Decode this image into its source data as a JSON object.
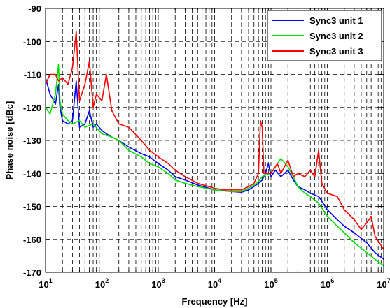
{
  "chart_data": {
    "type": "line",
    "title": "",
    "xlabel": "Frequency [Hz]",
    "ylabel": "Phase noise [dBc]",
    "x_scale": "log",
    "xlim": [
      10,
      10000000
    ],
    "ylim": [
      -170,
      -90
    ],
    "grid": true,
    "legend_position": "top-right",
    "x_ticks": [
      {
        "base": "10",
        "exp": "1"
      },
      {
        "base": "10",
        "exp": "2"
      },
      {
        "base": "10",
        "exp": "3"
      },
      {
        "base": "10",
        "exp": "4"
      },
      {
        "base": "10",
        "exp": "5"
      },
      {
        "base": "10",
        "exp": "6"
      },
      {
        "base": "10",
        "exp": "7"
      }
    ],
    "y_ticks": [
      "-90",
      "-100",
      "-110",
      "-120",
      "-130",
      "-140",
      "-150",
      "-160",
      "-170"
    ],
    "series": [
      {
        "name": "Sync3 unit 1",
        "color": "#0000ff",
        "points": [
          [
            10,
            -111
          ],
          [
            12,
            -116
          ],
          [
            15,
            -119
          ],
          [
            17,
            -113
          ],
          [
            18,
            -120
          ],
          [
            20,
            -124
          ],
          [
            25,
            -125
          ],
          [
            30,
            -124
          ],
          [
            35,
            -112
          ],
          [
            40,
            -126
          ],
          [
            50,
            -125
          ],
          [
            60,
            -121
          ],
          [
            70,
            -126
          ],
          [
            80,
            -125
          ],
          [
            100,
            -127
          ],
          [
            120,
            -128
          ],
          [
            150,
            -129
          ],
          [
            200,
            -130
          ],
          [
            300,
            -132
          ],
          [
            500,
            -134
          ],
          [
            700,
            -135
          ],
          [
            1000,
            -137
          ],
          [
            1500,
            -139
          ],
          [
            2000,
            -141
          ],
          [
            3000,
            -142
          ],
          [
            5000,
            -143.5
          ],
          [
            10000,
            -145
          ],
          [
            20000,
            -145.5
          ],
          [
            30000,
            -145.7
          ],
          [
            40000,
            -145
          ],
          [
            50000,
            -144
          ],
          [
            60000,
            -143
          ],
          [
            70000,
            -142
          ],
          [
            80000,
            -140
          ],
          [
            90000,
            -137
          ],
          [
            100000,
            -141
          ],
          [
            120000,
            -139
          ],
          [
            150000,
            -141
          ],
          [
            200000,
            -139
          ],
          [
            250000,
            -142
          ],
          [
            300000,
            -144
          ],
          [
            400000,
            -145
          ],
          [
            500000,
            -146
          ],
          [
            700000,
            -147
          ],
          [
            1000000,
            -151
          ],
          [
            1500000,
            -154
          ],
          [
            2000000,
            -156
          ],
          [
            3000000,
            -158
          ],
          [
            5000000,
            -161
          ],
          [
            7000000,
            -164
          ],
          [
            10000000,
            -166
          ]
        ]
      },
      {
        "name": "Sync3 unit 2",
        "color": "#00dd00",
        "points": [
          [
            10,
            -120
          ],
          [
            12,
            -122
          ],
          [
            15,
            -116
          ],
          [
            17,
            -107
          ],
          [
            18,
            -118
          ],
          [
            20,
            -122
          ],
          [
            25,
            -124
          ],
          [
            30,
            -125
          ],
          [
            40,
            -124
          ],
          [
            50,
            -126
          ],
          [
            70,
            -125
          ],
          [
            100,
            -128
          ],
          [
            150,
            -129
          ],
          [
            200,
            -130
          ],
          [
            300,
            -133
          ],
          [
            500,
            -135
          ],
          [
            700,
            -137
          ],
          [
            1000,
            -138
          ],
          [
            1500,
            -140
          ],
          [
            2000,
            -142
          ],
          [
            3000,
            -143
          ],
          [
            5000,
            -144
          ],
          [
            10000,
            -145
          ],
          [
            20000,
            -145.5
          ],
          [
            30000,
            -145.5
          ],
          [
            40000,
            -144.5
          ],
          [
            50000,
            -143.5
          ],
          [
            60000,
            -142.5
          ],
          [
            70000,
            -141
          ],
          [
            80000,
            -140.5
          ],
          [
            100000,
            -140
          ],
          [
            120000,
            -138
          ],
          [
            150000,
            -135.5
          ],
          [
            200000,
            -138
          ],
          [
            250000,
            -141
          ],
          [
            300000,
            -144
          ],
          [
            400000,
            -146
          ],
          [
            500000,
            -147
          ],
          [
            700000,
            -149
          ],
          [
            1000000,
            -153
          ],
          [
            1500000,
            -156
          ],
          [
            2000000,
            -158
          ],
          [
            3000000,
            -161
          ],
          [
            5000000,
            -164
          ],
          [
            7000000,
            -166
          ],
          [
            10000000,
            -168
          ]
        ]
      },
      {
        "name": "Sync3 unit 3",
        "color": "#ff0000",
        "points": [
          [
            10,
            -113
          ],
          [
            12,
            -110
          ],
          [
            15,
            -110
          ],
          [
            17,
            -112
          ],
          [
            20,
            -111
          ],
          [
            25,
            -113
          ],
          [
            30,
            -108
          ],
          [
            35,
            -97
          ],
          [
            40,
            -118
          ],
          [
            50,
            -113
          ],
          [
            60,
            -106
          ],
          [
            70,
            -120
          ],
          [
            80,
            -116
          ],
          [
            100,
            -118
          ],
          [
            120,
            -110
          ],
          [
            150,
            -121
          ],
          [
            200,
            -125
          ],
          [
            300,
            -126
          ],
          [
            500,
            -130
          ],
          [
            700,
            -133
          ],
          [
            1000,
            -135
          ],
          [
            1500,
            -137
          ],
          [
            2000,
            -139
          ],
          [
            3000,
            -141
          ],
          [
            5000,
            -143
          ],
          [
            10000,
            -144.5
          ],
          [
            15000,
            -145
          ],
          [
            20000,
            -145
          ],
          [
            30000,
            -145
          ],
          [
            40000,
            -144
          ],
          [
            50000,
            -143
          ],
          [
            60000,
            -140
          ],
          [
            65000,
            -124
          ],
          [
            70000,
            -126
          ],
          [
            75000,
            -140
          ],
          [
            90000,
            -140
          ],
          [
            100000,
            -140
          ],
          [
            130000,
            -137
          ],
          [
            150000,
            -140
          ],
          [
            200000,
            -136
          ],
          [
            250000,
            -141
          ],
          [
            300000,
            -140
          ],
          [
            400000,
            -141
          ],
          [
            500000,
            -139
          ],
          [
            600000,
            -141
          ],
          [
            700000,
            -133
          ],
          [
            800000,
            -143
          ],
          [
            1000000,
            -146
          ],
          [
            1500000,
            -147
          ],
          [
            2000000,
            -151
          ],
          [
            3000000,
            -154
          ],
          [
            4000000,
            -157
          ],
          [
            5000000,
            -155
          ],
          [
            6000000,
            -153
          ],
          [
            7000000,
            -159
          ],
          [
            10000000,
            -163
          ]
        ]
      }
    ]
  }
}
